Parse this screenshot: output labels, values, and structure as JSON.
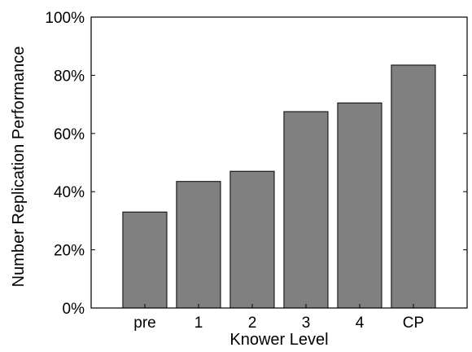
{
  "chart_data": {
    "type": "bar",
    "title": "",
    "xlabel": "Knower Level",
    "ylabel": "Number Replication Performance",
    "categories": [
      "pre",
      "1",
      "2",
      "3",
      "4",
      "CP"
    ],
    "values": [
      33,
      43.5,
      47,
      67.5,
      70.5,
      83.5
    ],
    "ylim": [
      0,
      100
    ],
    "yticks": [
      0,
      20,
      40,
      60,
      80,
      100
    ],
    "ytick_labels": [
      "0%",
      "20%",
      "40%",
      "60%",
      "80%",
      "100%"
    ],
    "bar_color": "#808080",
    "grid": false,
    "legend": "none"
  }
}
